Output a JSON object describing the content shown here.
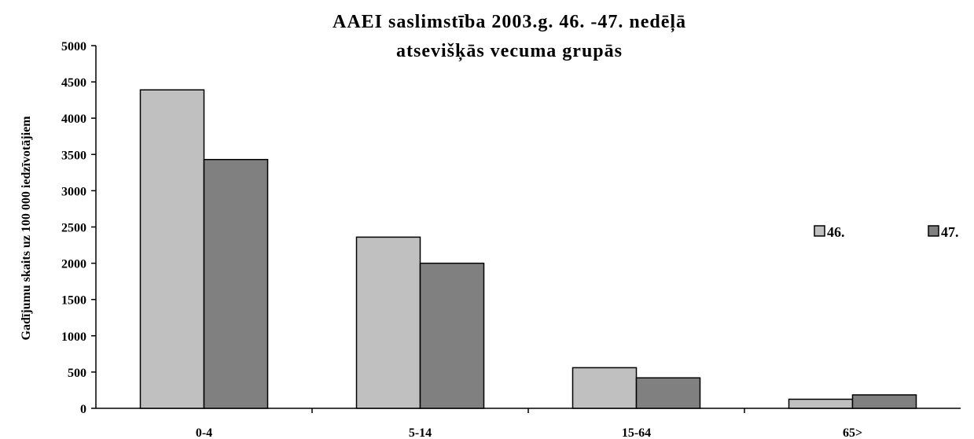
{
  "colors": {
    "series_46": "#c0c0c0",
    "series_47": "#808080",
    "axis": "#000000",
    "background": "#ffffff"
  },
  "chart_data": {
    "type": "bar",
    "title_line1": "AAEI saslimstība 2003.g. 46. -47. nedēļā",
    "title_line2": "atsevišķās vecuma grupās",
    "xlabel": "",
    "ylabel": "Gadījumu skaits uz 100 000 iedzīvotājiem",
    "categories": [
      "0-4",
      "5-14",
      "15-64",
      "65>"
    ],
    "series": [
      {
        "name": "46.",
        "values": [
          4390,
          2360,
          560,
          125
        ]
      },
      {
        "name": "47.",
        "values": [
          3430,
          2000,
          420,
          185
        ]
      }
    ],
    "ylim": [
      0,
      5000
    ],
    "yticks": [
      0,
      500,
      1000,
      1500,
      2000,
      2500,
      3000,
      3500,
      4000,
      4500,
      5000
    ],
    "grid": false,
    "legend_position": "right"
  }
}
